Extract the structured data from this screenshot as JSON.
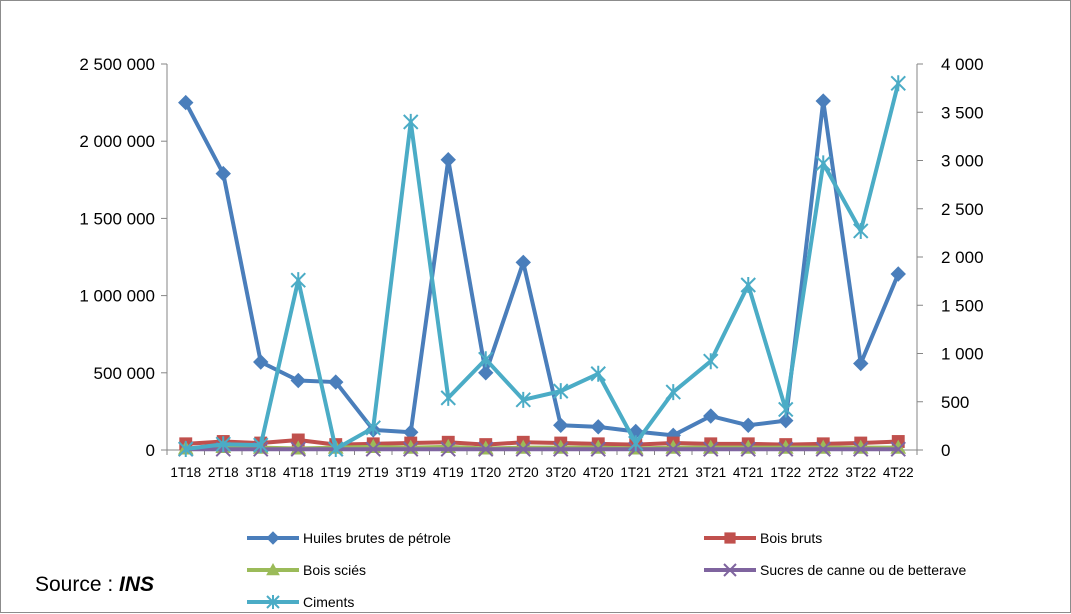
{
  "source": {
    "prefix": "Source : ",
    "name": "INS"
  },
  "chart_data": {
    "type": "line",
    "title": "",
    "xlabel": "",
    "ylabel": "",
    "categories": [
      "1T18",
      "2T18",
      "3T18",
      "4T18",
      "1T19",
      "2T19",
      "3T19",
      "4T19",
      "1T20",
      "2T20",
      "3T20",
      "4T20",
      "1T21",
      "2T21",
      "3T21",
      "4T21",
      "1T22",
      "2T22",
      "3T22",
      "4T22"
    ],
    "x_tick_labels": [
      "1T18",
      "2T18",
      "3T18",
      "4T18",
      "1T19",
      "2T19",
      "3T19",
      "4T19",
      "1T20",
      "2T20",
      "3T20",
      "4T20",
      "1T21",
      "2T21",
      "3T21",
      "4T21",
      "1T22",
      "2T22",
      "3T22",
      "4T22"
    ],
    "y_left": {
      "range": [
        0,
        2500000
      ],
      "ticks": [
        "0",
        "500 000",
        "1 000 000",
        "1 500 000",
        "2 000 000",
        "2 500 000"
      ]
    },
    "y_right": {
      "range": [
        0,
        4000
      ],
      "ticks": [
        "0",
        "500",
        "1 000",
        "1 500",
        "2 000",
        "2 500",
        "3 000",
        "3 500",
        "4 000"
      ]
    },
    "grid": false,
    "legend_position": "bottom",
    "series": [
      {
        "name": "Huiles brutes de pétrole",
        "axis": "left",
        "color": "#4a7ebb",
        "marker": "diamond",
        "values": [
          2250000,
          1790000,
          570000,
          450000,
          440000,
          130000,
          115000,
          1880000,
          500000,
          1215000,
          160000,
          150000,
          120000,
          95000,
          220000,
          160000,
          190000,
          2260000,
          560000,
          1140000
        ]
      },
      {
        "name": "Bois bruts",
        "axis": "left",
        "color": "#c0504d",
        "marker": "square",
        "values": [
          40000,
          55000,
          45000,
          65000,
          35000,
          40000,
          45000,
          50000,
          35000,
          50000,
          45000,
          40000,
          35000,
          45000,
          40000,
          40000,
          35000,
          40000,
          45000,
          55000
        ]
      },
      {
        "name": "Bois sciés",
        "axis": "left",
        "color": "#9bbb59",
        "marker": "triangle",
        "values": [
          10000,
          20000,
          15000,
          10000,
          15000,
          20000,
          15000,
          20000,
          10000,
          15000,
          15000,
          15000,
          10000,
          15000,
          15000,
          15000,
          15000,
          15000,
          15000,
          15000
        ]
      },
      {
        "name": "Sucres de canne ou de betterave",
        "axis": "left",
        "color": "#7f649f",
        "marker": "x",
        "values": [
          5000,
          5000,
          5000,
          5000,
          5000,
          5000,
          5000,
          5000,
          5000,
          5000,
          5000,
          5000,
          5000,
          5000,
          5000,
          5000,
          5000,
          5000,
          5000,
          5000
        ]
      },
      {
        "name": "Ciments",
        "axis": "right",
        "color": "#4bacc6",
        "marker": "star",
        "values": [
          10,
          60,
          50,
          1760,
          10,
          230,
          3400,
          540,
          940,
          520,
          610,
          790,
          70,
          600,
          920,
          1710,
          420,
          2970,
          2270,
          3800
        ]
      }
    ]
  }
}
